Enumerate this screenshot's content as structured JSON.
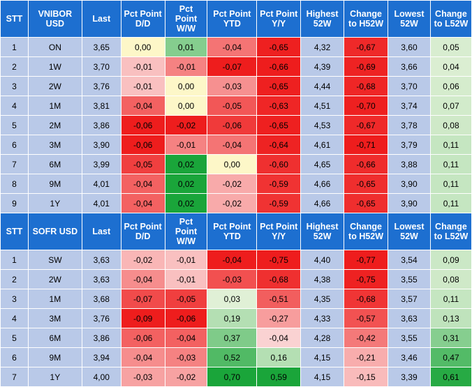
{
  "tables": [
    {
      "headers": [
        "STT",
        "VNIBOR USD",
        "Last",
        "Pct Point D/D",
        "Pct Point W/W",
        "Pct Point YTD",
        "Pct Point Y/Y",
        "Highest 52W",
        "Change to H52W",
        "Lowest 52W",
        "Change to L52W"
      ],
      "rows": [
        {
          "cells": [
            "1",
            "ON",
            "3,65",
            "0,00",
            "0,01",
            "-0,04",
            "-0,65",
            "4,32",
            "-0,67",
            "3,60",
            "0,05"
          ]
        },
        {
          "cells": [
            "2",
            "1W",
            "3,70",
            "-0,01",
            "-0,01",
            "-0,07",
            "-0,66",
            "4,39",
            "-0,69",
            "3,66",
            "0,04"
          ]
        },
        {
          "cells": [
            "3",
            "2W",
            "3,76",
            "-0,01",
            "0,00",
            "-0,03",
            "-0,65",
            "4,44",
            "-0,68",
            "3,70",
            "0,06"
          ]
        },
        {
          "cells": [
            "4",
            "1M",
            "3,81",
            "-0,04",
            "0,00",
            "-0,05",
            "-0,63",
            "4,51",
            "-0,70",
            "3,74",
            "0,07"
          ]
        },
        {
          "cells": [
            "5",
            "2M",
            "3,86",
            "-0,06",
            "-0,02",
            "-0,06",
            "-0,65",
            "4,53",
            "-0,67",
            "3,78",
            "0,08"
          ]
        },
        {
          "cells": [
            "6",
            "3M",
            "3,90",
            "-0,06",
            "-0,01",
            "-0,04",
            "-0,64",
            "4,61",
            "-0,71",
            "3,79",
            "0,11"
          ]
        },
        {
          "cells": [
            "7",
            "6M",
            "3,99",
            "-0,05",
            "0,02",
            "0,00",
            "-0,60",
            "4,65",
            "-0,66",
            "3,88",
            "0,11"
          ]
        },
        {
          "cells": [
            "8",
            "9M",
            "4,01",
            "-0,04",
            "0,02",
            "-0,02",
            "-0,59",
            "4,66",
            "-0,65",
            "3,90",
            "0,11"
          ]
        },
        {
          "cells": [
            "9",
            "1Y",
            "4,01",
            "-0,04",
            "0,02",
            "-0,02",
            "-0,59",
            "4,66",
            "-0,65",
            "3,90",
            "0,11"
          ]
        }
      ]
    },
    {
      "headers": [
        "STT",
        "SOFR USD",
        "Last",
        "Pct Point D/D",
        "Pct Point W/W",
        "Pct Point YTD",
        "Pct Point Y/Y",
        "Highest 52W",
        "Change to H52W",
        "Lowest 52W",
        "Change to L52W"
      ],
      "rows": [
        {
          "cells": [
            "1",
            "SW",
            "3,63",
            "-0,02",
            "-0,01",
            "-0,04",
            "-0,75",
            "4,40",
            "-0,77",
            "3,54",
            "0,09"
          ]
        },
        {
          "cells": [
            "2",
            "2W",
            "3,63",
            "-0,04",
            "-0,01",
            "-0,03",
            "-0,68",
            "4,38",
            "-0,75",
            "3,55",
            "0,08"
          ]
        },
        {
          "cells": [
            "3",
            "1M",
            "3,68",
            "-0,07",
            "-0,05",
            "0,03",
            "-0,51",
            "4,35",
            "-0,68",
            "3,57",
            "0,11"
          ]
        },
        {
          "cells": [
            "4",
            "3M",
            "3,76",
            "-0,09",
            "-0,06",
            "0,19",
            "-0,27",
            "4,33",
            "-0,57",
            "3,63",
            "0,13"
          ]
        },
        {
          "cells": [
            "5",
            "6M",
            "3,86",
            "-0,06",
            "-0,04",
            "0,37",
            "-0,04",
            "4,28",
            "-0,42",
            "3,55",
            "0,31"
          ]
        },
        {
          "cells": [
            "6",
            "9M",
            "3,94",
            "-0,04",
            "-0,03",
            "0,52",
            "0,16",
            "4,15",
            "-0,21",
            "3,46",
            "0,47"
          ]
        },
        {
          "cells": [
            "7",
            "1Y",
            "4,00",
            "-0,03",
            "-0,02",
            "0,70",
            "0,59",
            "4,15",
            "-0,15",
            "3,39",
            "0,61"
          ]
        }
      ]
    }
  ],
  "colors": {
    "header_bg": "#1d6fd0",
    "header_text": "#ffffff",
    "static_bg": "#b9c9e8",
    "neutral_yellow": "#fdf7c8",
    "zero_green": "#e2efcf"
  }
}
